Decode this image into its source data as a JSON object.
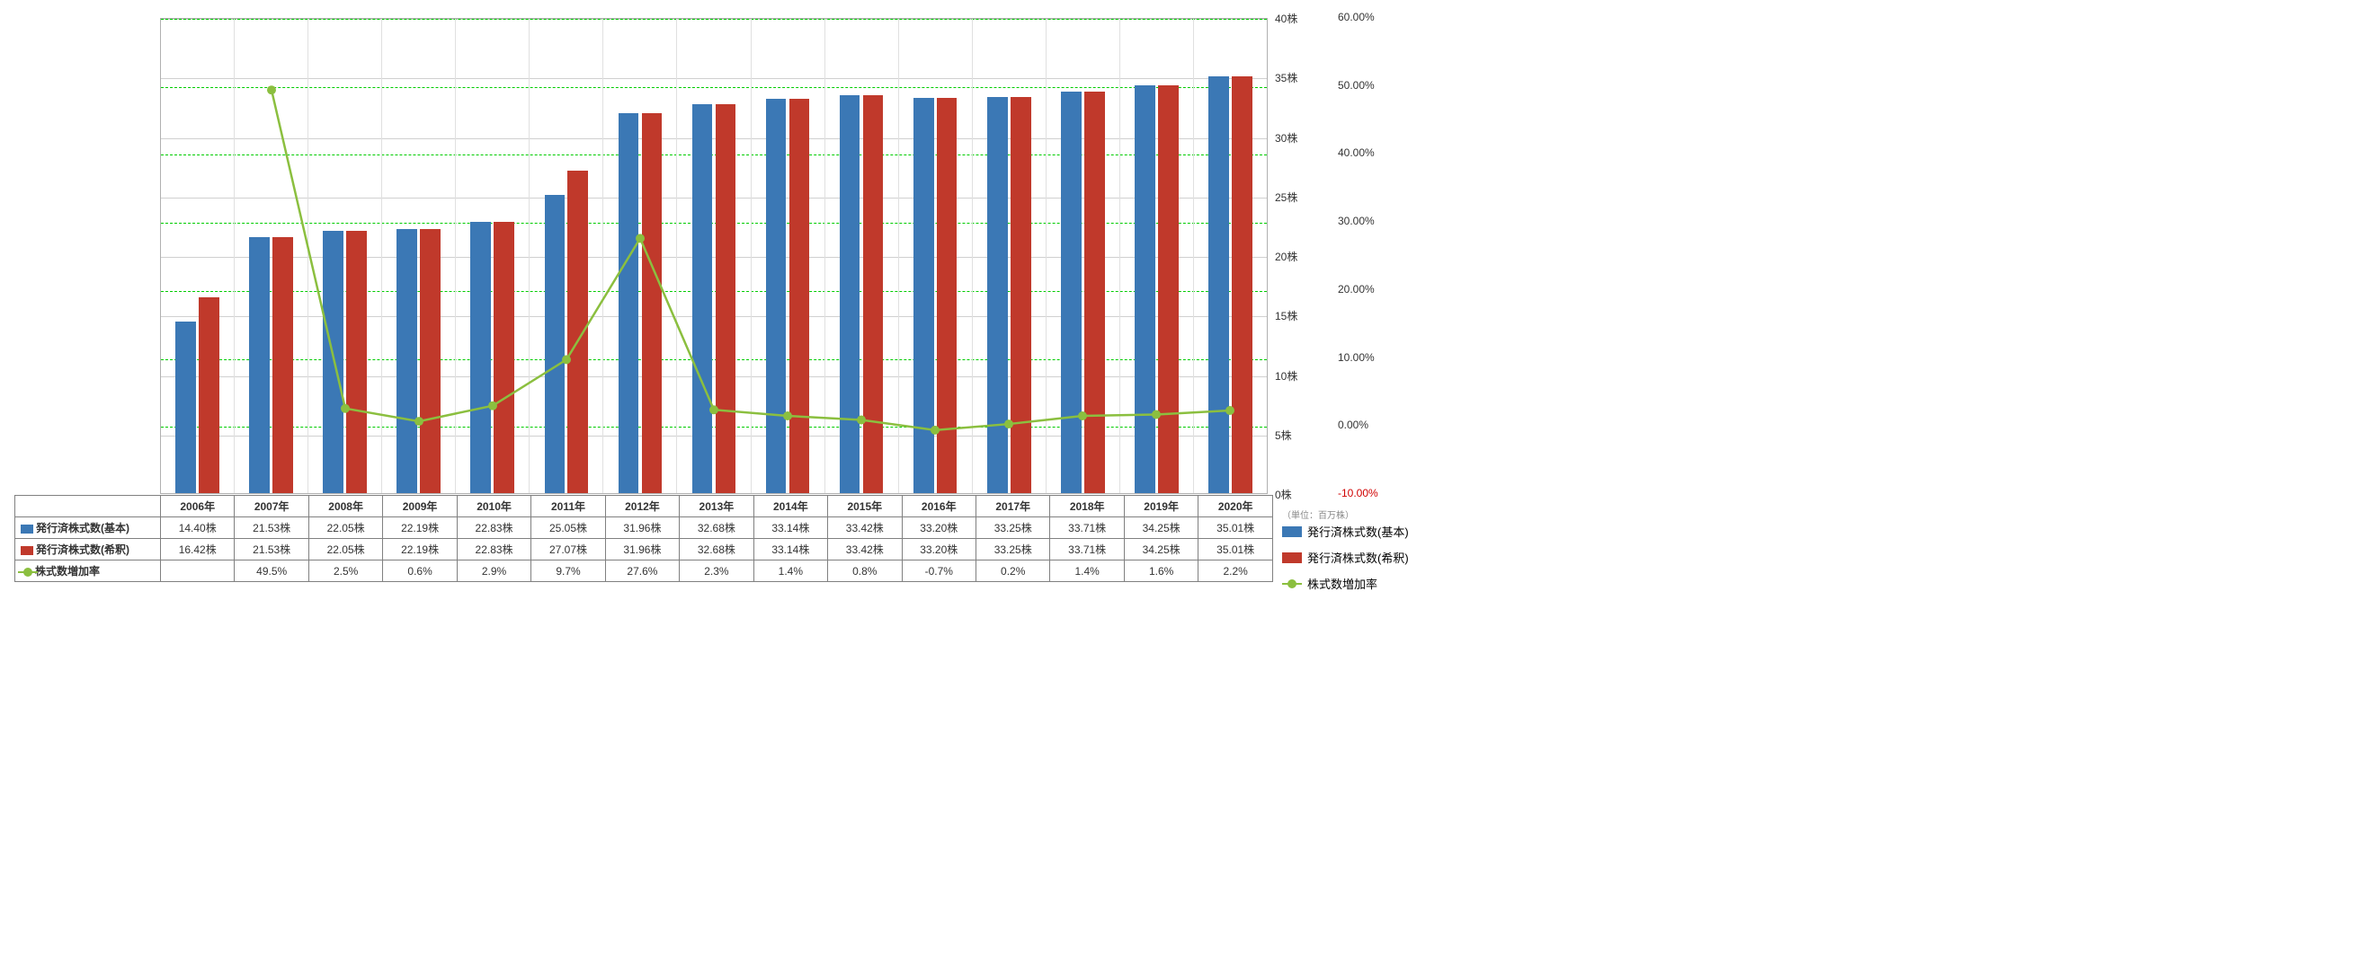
{
  "chart": {
    "type": "bar+line",
    "years": [
      "2006年",
      "2007年",
      "2008年",
      "2009年",
      "2010年",
      "2011年",
      "2012年",
      "2013年",
      "2014年",
      "2015年",
      "2016年",
      "2017年",
      "2018年",
      "2019年",
      "2020年"
    ],
    "series_basic": {
      "label": "発行済株式数(基本)",
      "color": "#3b78b5",
      "values": [
        14.4,
        21.53,
        22.05,
        22.19,
        22.83,
        25.05,
        31.96,
        32.68,
        33.14,
        33.42,
        33.2,
        33.25,
        33.71,
        34.25,
        35.01
      ],
      "display": [
        "14.40株",
        "21.53株",
        "22.05株",
        "22.19株",
        "22.83株",
        "25.05株",
        "31.96株",
        "32.68株",
        "33.14株",
        "33.42株",
        "33.20株",
        "33.25株",
        "33.71株",
        "34.25株",
        "35.01株"
      ]
    },
    "series_diluted": {
      "label": "発行済株式数(希釈)",
      "color": "#c0392b",
      "values": [
        16.42,
        21.53,
        22.05,
        22.19,
        22.83,
        27.07,
        31.96,
        32.68,
        33.14,
        33.42,
        33.2,
        33.25,
        33.71,
        34.25,
        35.01
      ],
      "display": [
        "16.42株",
        "21.53株",
        "22.05株",
        "22.19株",
        "22.83株",
        "27.07株",
        "31.96株",
        "32.68株",
        "33.14株",
        "33.42株",
        "33.20株",
        "33.25株",
        "33.71株",
        "34.25株",
        "35.01株"
      ]
    },
    "series_growth": {
      "label": "株式数増加率",
      "color": "#8bbf3f",
      "values": [
        null,
        49.5,
        2.5,
        0.6,
        2.9,
        9.7,
        27.6,
        2.3,
        1.4,
        0.8,
        -0.7,
        0.2,
        1.4,
        1.6,
        2.2
      ],
      "display": [
        "",
        "49.5%",
        "2.5%",
        "0.6%",
        "2.9%",
        "9.7%",
        "27.6%",
        "2.3%",
        "1.4%",
        "0.8%",
        "-0.7%",
        "0.2%",
        "1.4%",
        "1.6%",
        "2.2%"
      ]
    },
    "y_left": {
      "min": 0,
      "max": 40,
      "step": 5,
      "labels": [
        "0株",
        "5株",
        "10株",
        "15株",
        "20株",
        "25株",
        "30株",
        "35株",
        "40株"
      ],
      "unit_note": "（単位：百万株）"
    },
    "y_right": {
      "min": -10,
      "max": 60,
      "step": 10,
      "labels": [
        "-10.00%",
        "0.00%",
        "10.00%",
        "20.00%",
        "30.00%",
        "40.00%",
        "50.00%",
        "60.00%"
      ],
      "neg_color": "#d00000"
    },
    "grid_color": "#d0d0d0",
    "dashed_grid_color": "#00cc00",
    "background_color": "#ffffff"
  },
  "legend": {
    "basic": "発行済株式数(基本)",
    "diluted": "発行済株式数(希釈)",
    "growth": "株式数増加率"
  }
}
